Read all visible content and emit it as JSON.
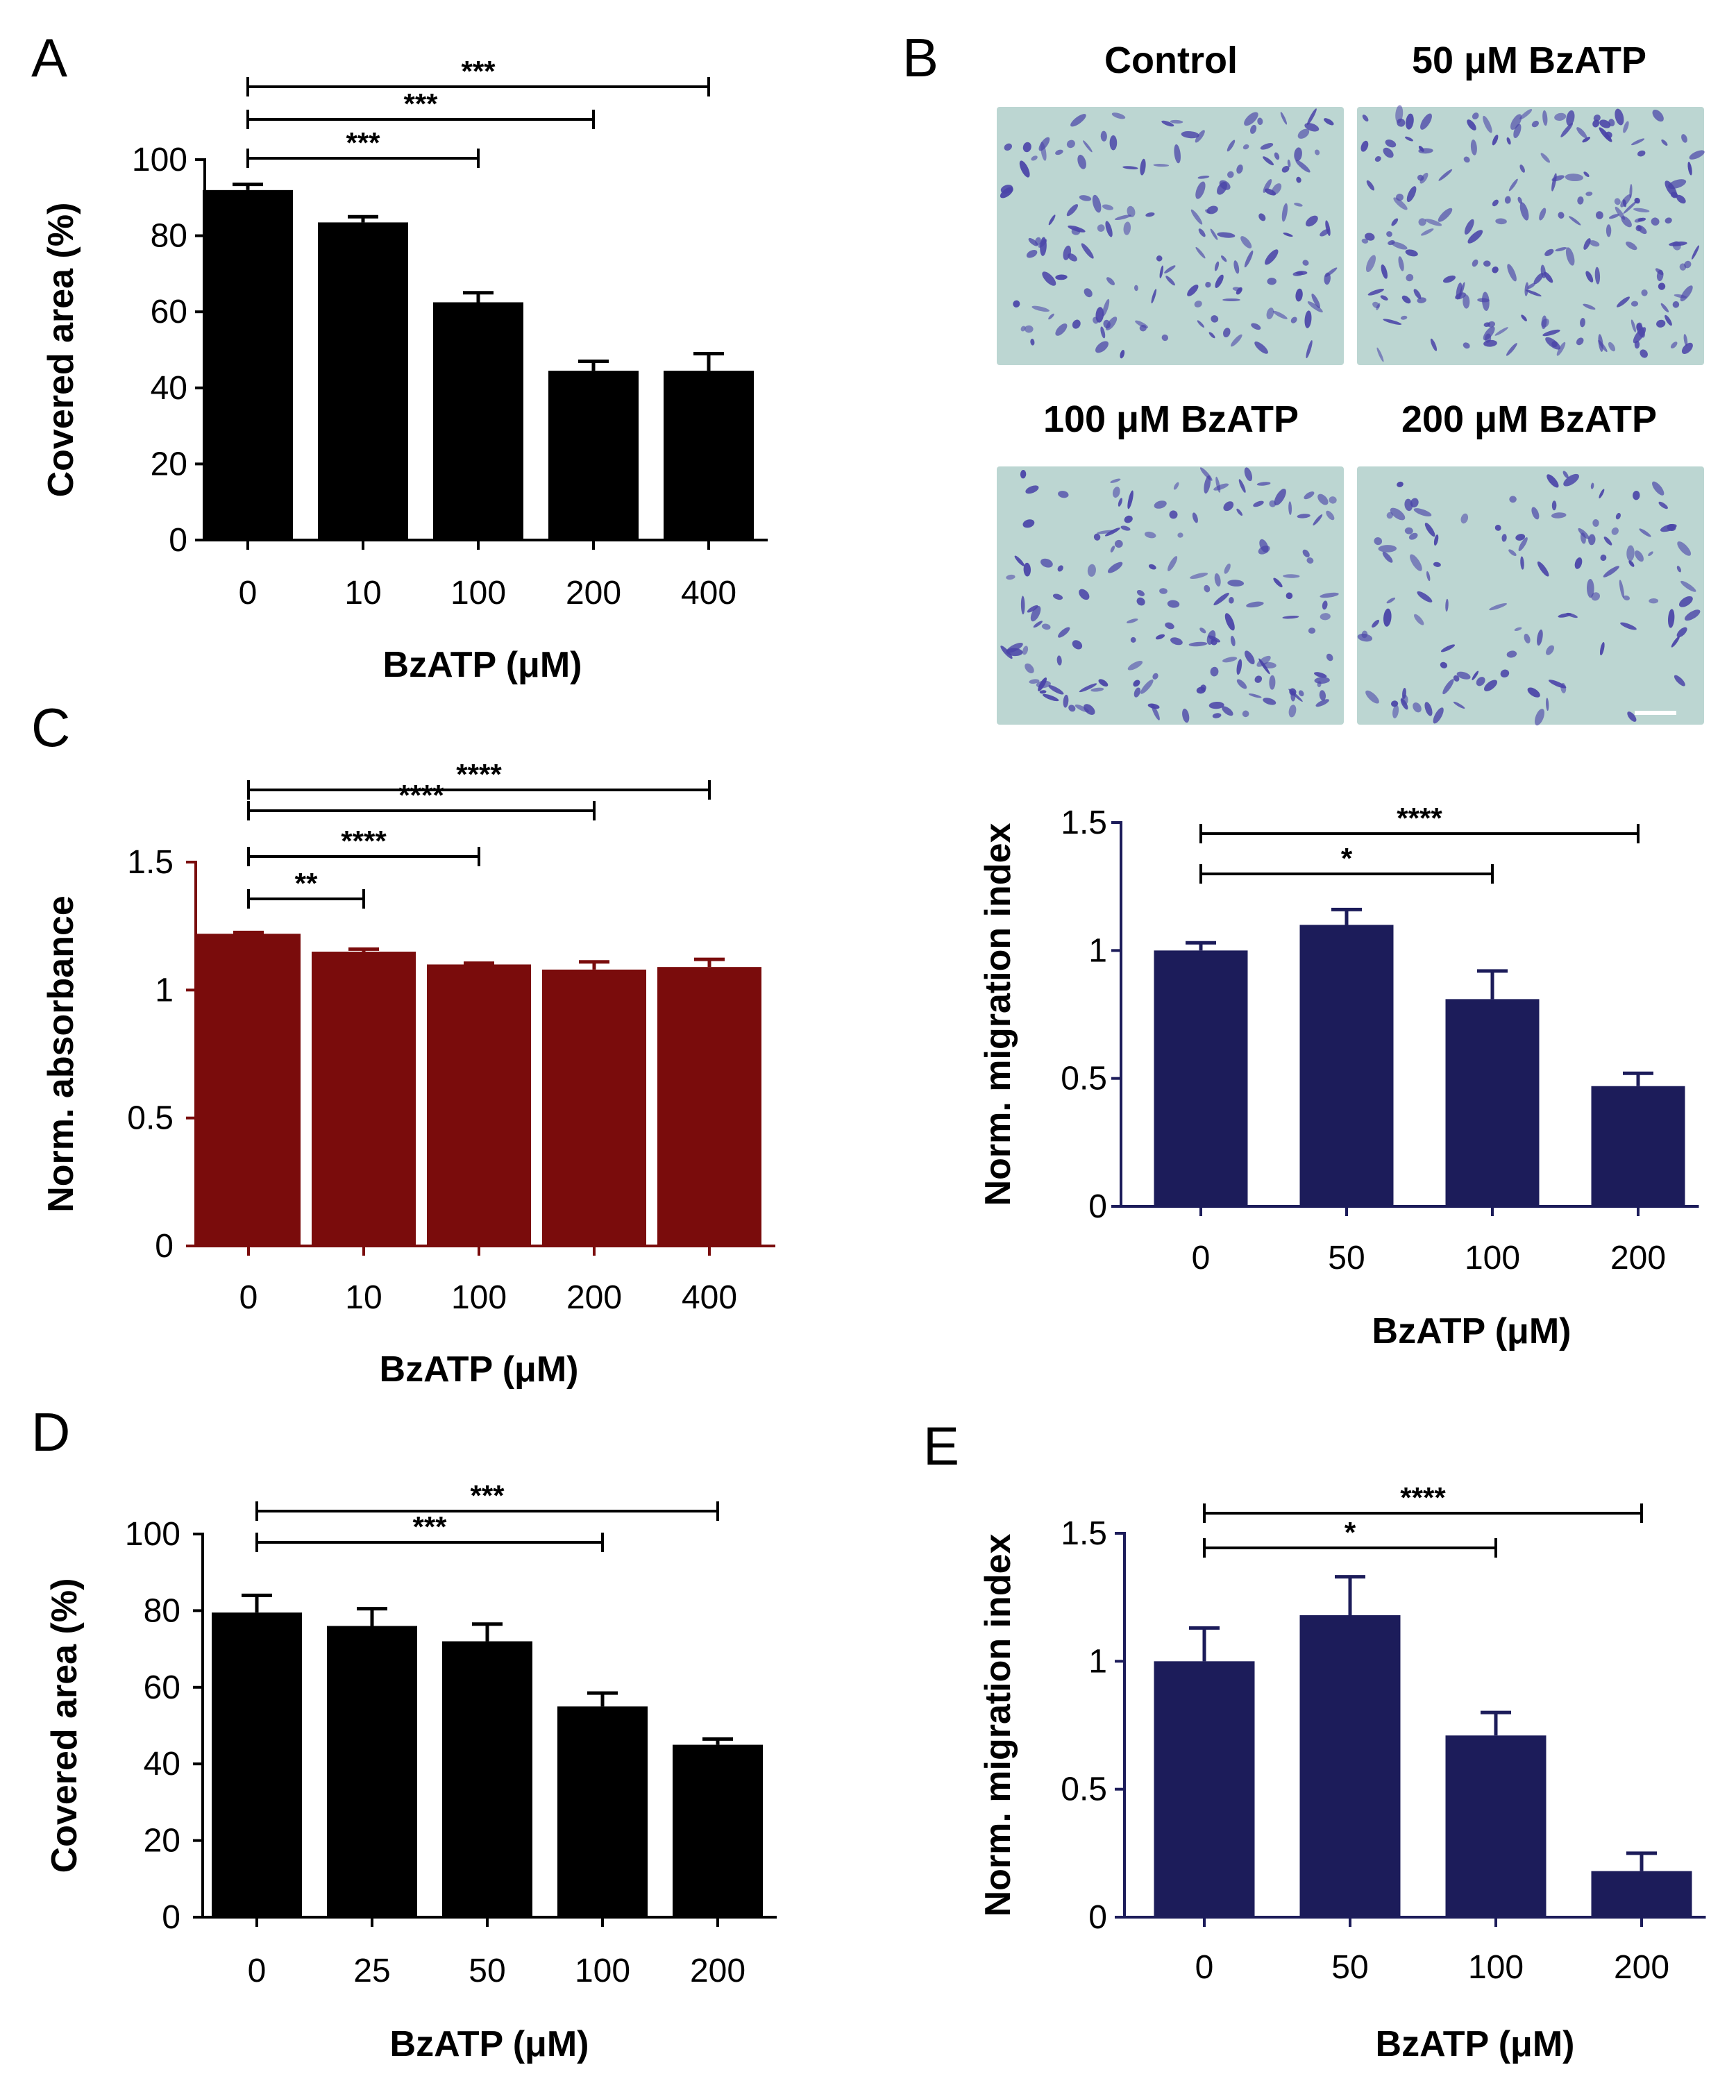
{
  "colors": {
    "black_bars": "#000000",
    "red_bars": "#7a0c0c",
    "navy_bars": "#1c1c5a",
    "micro_bg": "#bcd6d2",
    "micro_cells": "#4a44a8"
  },
  "micrographs": {
    "panel_label": "B",
    "titles": [
      "Control",
      "50 μM BzATP",
      "100 μM BzATP",
      "200 μM BzATP"
    ]
  },
  "chart_data": [
    {
      "id": "A",
      "panel_label": "A",
      "type": "bar",
      "categories": [
        "0",
        "10",
        "100",
        "200",
        "400"
      ],
      "values": [
        92,
        83.5,
        62.5,
        44.5,
        44.5
      ],
      "errors": [
        1.5,
        1.5,
        2.5,
        2.5,
        4.5
      ],
      "ylim": [
        0,
        100
      ],
      "yticks": [
        "0",
        "20",
        "40",
        "60",
        "80",
        "100"
      ],
      "ytick_values": [
        0,
        20,
        40,
        60,
        80,
        100
      ],
      "xlabel": "BzATP (μM)",
      "ylabel": "Covered area (%)",
      "color": "black_bars",
      "significance": [
        {
          "from": 0,
          "to": 2,
          "label": "***"
        },
        {
          "from": 0,
          "to": 3,
          "label": "***"
        },
        {
          "from": 0,
          "to": 4,
          "label": "***"
        }
      ]
    },
    {
      "id": "C",
      "panel_label": "C",
      "type": "bar",
      "categories": [
        "0",
        "10",
        "100",
        "200",
        "400"
      ],
      "values": [
        1.22,
        1.15,
        1.1,
        1.08,
        1.09
      ],
      "errors": [
        0.005,
        0.01,
        0.005,
        0.03,
        0.03
      ],
      "ylim": [
        0,
        1.5
      ],
      "yticks": [
        "0",
        "0.5",
        "1",
        "1.5"
      ],
      "ytick_values": [
        0,
        0.5,
        1,
        1.5
      ],
      "xlabel": "BzATP (μM)",
      "ylabel": "Norm. absorbance",
      "color": "red_bars",
      "significance": [
        {
          "from": 0,
          "to": 1,
          "label": "**"
        },
        {
          "from": 0,
          "to": 2,
          "label": "****"
        },
        {
          "from": 0,
          "to": 3,
          "label": "****"
        },
        {
          "from": 0,
          "to": 4,
          "label": "****"
        }
      ]
    },
    {
      "id": "B2",
      "panel_label": "",
      "type": "bar",
      "categories": [
        "0",
        "50",
        "100",
        "200"
      ],
      "values": [
        1.0,
        1.1,
        0.81,
        0.47
      ],
      "errors": [
        0.03,
        0.06,
        0.11,
        0.05
      ],
      "ylim": [
        0,
        1.5
      ],
      "yticks": [
        "0",
        "0.5",
        "1",
        "1.5"
      ],
      "ytick_values": [
        0,
        0.5,
        1,
        1.5
      ],
      "xlabel": "BzATP (μM)",
      "ylabel": "Norm. migration index",
      "color": "navy_bars",
      "significance": [
        {
          "from": 0,
          "to": 2,
          "label": "*"
        },
        {
          "from": 0,
          "to": 3,
          "label": "****"
        }
      ]
    },
    {
      "id": "D",
      "panel_label": "D",
      "type": "bar",
      "categories": [
        "0",
        "25",
        "50",
        "100",
        "200"
      ],
      "values": [
        79.5,
        76,
        72,
        55,
        45
      ],
      "errors": [
        4.5,
        4.5,
        4.5,
        3.5,
        1.5
      ],
      "ylim": [
        0,
        100
      ],
      "yticks": [
        "0",
        "20",
        "40",
        "60",
        "80",
        "100"
      ],
      "ytick_values": [
        0,
        20,
        40,
        60,
        80,
        100
      ],
      "xlabel": "BzATP (μM)",
      "ylabel": "Covered area (%)",
      "color": "black_bars",
      "significance": [
        {
          "from": 0,
          "to": 3,
          "label": "***"
        },
        {
          "from": 0,
          "to": 4,
          "label": "***"
        }
      ]
    },
    {
      "id": "E",
      "panel_label": "E",
      "type": "bar",
      "categories": [
        "0",
        "50",
        "100",
        "200"
      ],
      "values": [
        1.0,
        1.18,
        0.71,
        0.18
      ],
      "errors": [
        0.13,
        0.15,
        0.09,
        0.07
      ],
      "ylim": [
        0,
        1.5
      ],
      "yticks": [
        "0",
        "0.5",
        "1",
        "1.5"
      ],
      "ytick_values": [
        0,
        0.5,
        1,
        1.5
      ],
      "xlabel": "BzATP (μM)",
      "ylabel": "Norm. migration index",
      "color": "navy_bars",
      "significance": [
        {
          "from": 0,
          "to": 2,
          "label": "*"
        },
        {
          "from": 0,
          "to": 3,
          "label": "****"
        }
      ]
    }
  ]
}
